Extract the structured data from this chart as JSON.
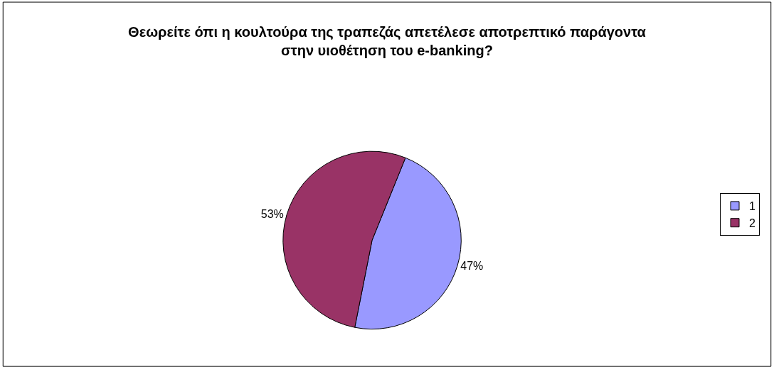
{
  "chart_data": {
    "type": "pie",
    "title": "Θεωρείτε όπι η κουλτούρα της τραπεζάς απετέλεσε αποτρεπτικό παράγοντα στην υιοθέτηση του e-banking?",
    "categories": [
      "1",
      "2"
    ],
    "values": [
      47,
      53
    ],
    "colors": [
      "#9999ff",
      "#993366"
    ],
    "value_labels": [
      "47%",
      "53%"
    ],
    "legend": "right"
  }
}
